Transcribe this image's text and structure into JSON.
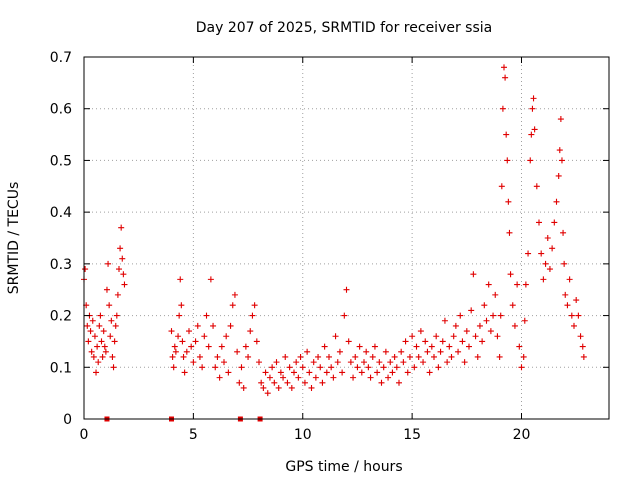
{
  "chart_data": {
    "type": "scatter",
    "title": "Day 207 of 2025, SRMTID for receiver ssia",
    "xlabel": "GPS time / hours",
    "ylabel": "SRMTID / TECUs",
    "xlim": [
      0,
      24
    ],
    "ylim": [
      0,
      0.7
    ],
    "xticks": [
      0,
      5,
      10,
      15,
      20
    ],
    "xtick_labels": [
      "0",
      "5",
      "10",
      "15",
      "20"
    ],
    "yticks": [
      0,
      0.1,
      0.2,
      0.3,
      0.4,
      0.5,
      0.6,
      0.7
    ],
    "ytick_labels": [
      "0",
      "0.1",
      "0.2",
      "0.3",
      "0.4",
      "0.5",
      "0.6",
      "0.7"
    ],
    "grid": true,
    "marker": "+",
    "color": "#e00000",
    "series": [
      {
        "name": "SRMTID",
        "points": [
          [
            0.0,
            0.27
          ],
          [
            0.05,
            0.29
          ],
          [
            0.1,
            0.22
          ],
          [
            0.15,
            0.18
          ],
          [
            0.2,
            0.15
          ],
          [
            0.25,
            0.2
          ],
          [
            0.3,
            0.17
          ],
          [
            0.35,
            0.13
          ],
          [
            0.4,
            0.19
          ],
          [
            0.45,
            0.12
          ],
          [
            0.5,
            0.16
          ],
          [
            0.55,
            0.09
          ],
          [
            0.6,
            0.14
          ],
          [
            0.65,
            0.11
          ],
          [
            0.7,
            0.18
          ],
          [
            0.75,
            0.2
          ],
          [
            0.8,
            0.15
          ],
          [
            0.85,
            0.12
          ],
          [
            0.9,
            0.17
          ],
          [
            0.95,
            0.14
          ],
          [
            1.0,
            0.13
          ],
          [
            1.05,
            0.25
          ],
          [
            1.1,
            0.3
          ],
          [
            1.15,
            0.22
          ],
          [
            1.2,
            0.16
          ],
          [
            1.25,
            0.19
          ],
          [
            1.3,
            0.12
          ],
          [
            1.35,
            0.1
          ],
          [
            1.4,
            0.15
          ],
          [
            1.45,
            0.18
          ],
          [
            1.5,
            0.2
          ],
          [
            1.55,
            0.24
          ],
          [
            1.6,
            0.29
          ],
          [
            1.65,
            0.33
          ],
          [
            1.7,
            0.37
          ],
          [
            1.75,
            0.31
          ],
          [
            1.8,
            0.28
          ],
          [
            1.85,
            0.26
          ],
          [
            4.0,
            0.17
          ],
          [
            4.05,
            0.12
          ],
          [
            4.1,
            0.1
          ],
          [
            4.15,
            0.14
          ],
          [
            4.2,
            0.13
          ],
          [
            4.3,
            0.16
          ],
          [
            4.35,
            0.2
          ],
          [
            4.4,
            0.27
          ],
          [
            4.45,
            0.22
          ],
          [
            4.5,
            0.15
          ],
          [
            4.55,
            0.12
          ],
          [
            4.6,
            0.09
          ],
          [
            4.7,
            0.13
          ],
          [
            4.8,
            0.17
          ],
          [
            4.9,
            0.14
          ],
          [
            5.0,
            0.11
          ],
          [
            5.1,
            0.15
          ],
          [
            5.2,
            0.18
          ],
          [
            5.3,
            0.12
          ],
          [
            5.4,
            0.1
          ],
          [
            5.5,
            0.16
          ],
          [
            5.6,
            0.2
          ],
          [
            5.7,
            0.14
          ],
          [
            5.8,
            0.27
          ],
          [
            5.9,
            0.18
          ],
          [
            6.0,
            0.1
          ],
          [
            6.1,
            0.12
          ],
          [
            6.2,
            0.08
          ],
          [
            6.3,
            0.14
          ],
          [
            6.4,
            0.11
          ],
          [
            6.5,
            0.16
          ],
          [
            6.6,
            0.09
          ],
          [
            6.7,
            0.18
          ],
          [
            6.8,
            0.22
          ],
          [
            6.9,
            0.24
          ],
          [
            7.0,
            0.13
          ],
          [
            7.1,
            0.07
          ],
          [
            7.2,
            0.1
          ],
          [
            7.3,
            0.06
          ],
          [
            7.4,
            0.14
          ],
          [
            7.5,
            0.12
          ],
          [
            7.6,
            0.17
          ],
          [
            7.7,
            0.2
          ],
          [
            7.8,
            0.22
          ],
          [
            7.9,
            0.15
          ],
          [
            8.0,
            0.11
          ],
          [
            8.1,
            0.07
          ],
          [
            8.2,
            0.06
          ],
          [
            8.3,
            0.09
          ],
          [
            8.4,
            0.05
          ],
          [
            8.5,
            0.08
          ],
          [
            8.6,
            0.1
          ],
          [
            8.7,
            0.07
          ],
          [
            8.8,
            0.11
          ],
          [
            8.9,
            0.06
          ],
          [
            9.0,
            0.09
          ],
          [
            9.1,
            0.08
          ],
          [
            9.2,
            0.12
          ],
          [
            9.3,
            0.07
          ],
          [
            9.4,
            0.1
          ],
          [
            9.5,
            0.06
          ],
          [
            9.6,
            0.09
          ],
          [
            9.7,
            0.11
          ],
          [
            9.8,
            0.08
          ],
          [
            9.9,
            0.12
          ],
          [
            10.0,
            0.1
          ],
          [
            10.1,
            0.07
          ],
          [
            10.2,
            0.13
          ],
          [
            10.3,
            0.09
          ],
          [
            10.4,
            0.06
          ],
          [
            10.5,
            0.11
          ],
          [
            10.6,
            0.08
          ],
          [
            10.7,
            0.12
          ],
          [
            10.8,
            0.1
          ],
          [
            10.9,
            0.07
          ],
          [
            11.0,
            0.14
          ],
          [
            11.1,
            0.09
          ],
          [
            11.2,
            0.12
          ],
          [
            11.3,
            0.1
          ],
          [
            11.4,
            0.08
          ],
          [
            11.5,
            0.16
          ],
          [
            11.6,
            0.11
          ],
          [
            11.7,
            0.13
          ],
          [
            11.8,
            0.09
          ],
          [
            11.9,
            0.2
          ],
          [
            12.0,
            0.25
          ],
          [
            12.1,
            0.15
          ],
          [
            12.2,
            0.11
          ],
          [
            12.3,
            0.08
          ],
          [
            12.4,
            0.12
          ],
          [
            12.5,
            0.1
          ],
          [
            12.6,
            0.14
          ],
          [
            12.7,
            0.09
          ],
          [
            12.8,
            0.11
          ],
          [
            12.9,
            0.13
          ],
          [
            13.0,
            0.1
          ],
          [
            13.1,
            0.08
          ],
          [
            13.2,
            0.12
          ],
          [
            13.3,
            0.14
          ],
          [
            13.4,
            0.09
          ],
          [
            13.5,
            0.11
          ],
          [
            13.6,
            0.07
          ],
          [
            13.7,
            0.1
          ],
          [
            13.8,
            0.13
          ],
          [
            13.9,
            0.08
          ],
          [
            14.0,
            0.11
          ],
          [
            14.1,
            0.09
          ],
          [
            14.2,
            0.12
          ],
          [
            14.3,
            0.1
          ],
          [
            14.4,
            0.07
          ],
          [
            14.5,
            0.13
          ],
          [
            14.6,
            0.11
          ],
          [
            14.7,
            0.15
          ],
          [
            14.8,
            0.09
          ],
          [
            14.9,
            0.12
          ],
          [
            15.0,
            0.16
          ],
          [
            15.1,
            0.1
          ],
          [
            15.2,
            0.14
          ],
          [
            15.3,
            0.12
          ],
          [
            15.4,
            0.17
          ],
          [
            15.5,
            0.11
          ],
          [
            15.6,
            0.15
          ],
          [
            15.7,
            0.13
          ],
          [
            15.8,
            0.09
          ],
          [
            15.9,
            0.14
          ],
          [
            16.0,
            0.12
          ],
          [
            16.1,
            0.16
          ],
          [
            16.2,
            0.1
          ],
          [
            16.3,
            0.13
          ],
          [
            16.4,
            0.15
          ],
          [
            16.5,
            0.19
          ],
          [
            16.6,
            0.11
          ],
          [
            16.7,
            0.14
          ],
          [
            16.8,
            0.12
          ],
          [
            16.9,
            0.16
          ],
          [
            17.0,
            0.18
          ],
          [
            17.1,
            0.13
          ],
          [
            17.2,
            0.2
          ],
          [
            17.3,
            0.15
          ],
          [
            17.4,
            0.11
          ],
          [
            17.5,
            0.17
          ],
          [
            17.6,
            0.14
          ],
          [
            17.7,
            0.21
          ],
          [
            17.8,
            0.28
          ],
          [
            17.9,
            0.16
          ],
          [
            18.0,
            0.12
          ],
          [
            18.1,
            0.18
          ],
          [
            18.2,
            0.15
          ],
          [
            18.3,
            0.22
          ],
          [
            18.4,
            0.19
          ],
          [
            18.5,
            0.26
          ],
          [
            18.6,
            0.17
          ],
          [
            18.7,
            0.2
          ],
          [
            18.8,
            0.24
          ],
          [
            18.9,
            0.16
          ],
          [
            19.0,
            0.12
          ],
          [
            19.05,
            0.2
          ],
          [
            19.1,
            0.45
          ],
          [
            19.15,
            0.6
          ],
          [
            19.2,
            0.68
          ],
          [
            19.25,
            0.66
          ],
          [
            19.3,
            0.55
          ],
          [
            19.35,
            0.5
          ],
          [
            19.4,
            0.42
          ],
          [
            19.45,
            0.36
          ],
          [
            19.5,
            0.28
          ],
          [
            19.6,
            0.22
          ],
          [
            19.7,
            0.18
          ],
          [
            19.8,
            0.26
          ],
          [
            19.9,
            0.14
          ],
          [
            20.0,
            0.1
          ],
          [
            20.1,
            0.12
          ],
          [
            20.15,
            0.19
          ],
          [
            20.2,
            0.26
          ],
          [
            20.3,
            0.32
          ],
          [
            20.4,
            0.5
          ],
          [
            20.45,
            0.55
          ],
          [
            20.5,
            0.6
          ],
          [
            20.55,
            0.62
          ],
          [
            20.6,
            0.56
          ],
          [
            20.7,
            0.45
          ],
          [
            20.8,
            0.38
          ],
          [
            20.9,
            0.32
          ],
          [
            21.0,
            0.27
          ],
          [
            21.1,
            0.3
          ],
          [
            21.2,
            0.35
          ],
          [
            21.3,
            0.29
          ],
          [
            21.4,
            0.33
          ],
          [
            21.5,
            0.38
          ],
          [
            21.6,
            0.42
          ],
          [
            21.7,
            0.47
          ],
          [
            21.75,
            0.52
          ],
          [
            21.8,
            0.58
          ],
          [
            21.85,
            0.5
          ],
          [
            21.9,
            0.36
          ],
          [
            21.95,
            0.3
          ],
          [
            22.0,
            0.24
          ],
          [
            22.1,
            0.22
          ],
          [
            22.2,
            0.27
          ],
          [
            22.3,
            0.2
          ],
          [
            22.4,
            0.18
          ],
          [
            22.5,
            0.23
          ],
          [
            22.6,
            0.2
          ],
          [
            22.7,
            0.16
          ],
          [
            22.8,
            0.14
          ],
          [
            22.85,
            0.12
          ]
        ]
      }
    ],
    "gap_markers_x": [
      1.05,
      4.0,
      7.15,
      8.05
    ]
  }
}
